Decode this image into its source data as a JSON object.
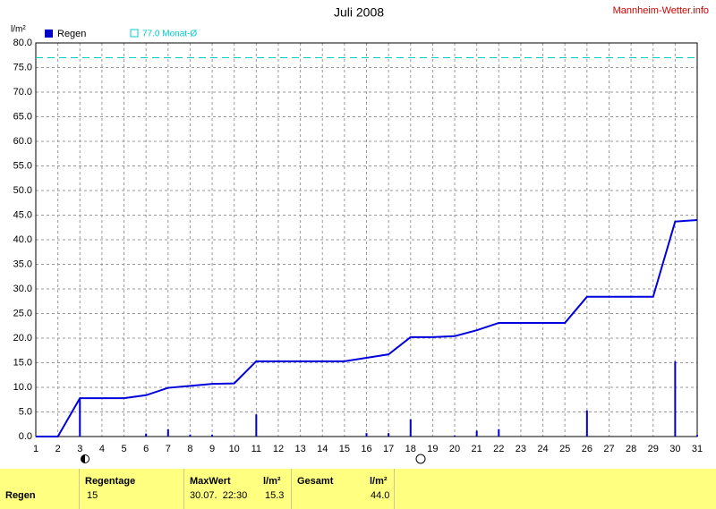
{
  "chart_data": {
    "type": "bar_line",
    "title": "Juli 2008",
    "watermark": "Mannheim-Wetter.info",
    "y_label": "l/m²",
    "xlim": [
      1,
      31
    ],
    "xticks": [
      1,
      2,
      3,
      4,
      5,
      6,
      7,
      8,
      9,
      10,
      11,
      12,
      13,
      14,
      15,
      16,
      17,
      18,
      19,
      20,
      21,
      22,
      23,
      24,
      25,
      26,
      27,
      28,
      29,
      30,
      31
    ],
    "ylim": [
      0,
      80
    ],
    "yticks": [
      {
        "value": 0,
        "label": "0.0"
      },
      {
        "value": 5,
        "label": "5.0"
      },
      {
        "value": 10,
        "label": "10.0"
      },
      {
        "value": 15,
        "label": "15.0"
      },
      {
        "value": 20,
        "label": "20.0"
      },
      {
        "value": 25,
        "label": "25.0"
      },
      {
        "value": 30,
        "label": "30.0"
      },
      {
        "value": 35,
        "label": "35.0"
      },
      {
        "value": 40,
        "label": "40.0"
      },
      {
        "value": 45,
        "label": "45.0"
      },
      {
        "value": 50,
        "label": "50.0"
      },
      {
        "value": 55,
        "label": "55.0"
      },
      {
        "value": 60,
        "label": "60.0"
      },
      {
        "value": 65,
        "label": "65.0"
      },
      {
        "value": 70,
        "label": "70.0"
      },
      {
        "value": 75,
        "label": "75.0"
      },
      {
        "value": 80,
        "label": "80.0"
      }
    ],
    "grid": true,
    "reference": {
      "value": 77,
      "label": "77.0 Monat-Ø",
      "color": "#00cccc"
    },
    "series": [
      {
        "name": "Regen",
        "type": "bar",
        "color": "#0000cc",
        "x": [
          3,
          6,
          7,
          8,
          9,
          10,
          11,
          16,
          17,
          18,
          20,
          21,
          22,
          26,
          30,
          31
        ],
        "values": [
          7.8,
          0.6,
          1.5,
          0.4,
          0.4,
          0.1,
          4.5,
          0.7,
          0.7,
          3.5,
          0.2,
          1.2,
          1.5,
          5.3,
          15.3,
          0.3
        ]
      },
      {
        "type": "line",
        "color": "#0000dd",
        "x": [
          1,
          2,
          3,
          4,
          5,
          6,
          7,
          8,
          9,
          10,
          11,
          12,
          13,
          14,
          15,
          16,
          17,
          18,
          19,
          20,
          21,
          22,
          23,
          24,
          25,
          26,
          27,
          28,
          29,
          30,
          31
        ],
        "values": [
          0,
          0,
          7.8,
          7.8,
          7.8,
          8.4,
          9.9,
          10.3,
          10.7,
          10.8,
          15.3,
          15.3,
          15.3,
          15.3,
          15.3,
          16.0,
          16.7,
          20.2,
          20.2,
          20.4,
          21.6,
          23.1,
          23.1,
          23.1,
          23.1,
          28.4,
          28.4,
          28.4,
          28.4,
          43.7,
          44.0
        ]
      }
    ]
  },
  "table": {
    "row_label": "Regen",
    "headers": [
      "Regentage",
      "MaxWert",
      "l/m²",
      "Gesamt",
      "l/m²"
    ],
    "values": [
      "15",
      "30.07.  22:30",
      "15.3",
      "44.0"
    ]
  }
}
